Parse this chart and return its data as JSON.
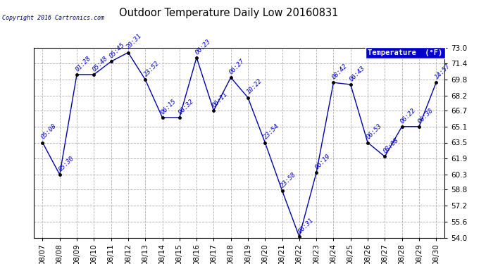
{
  "title": "Outdoor Temperature Daily Low 20160831",
  "copyright": "Copyright 2016 Cartronics.com",
  "legend_label": "Temperature  (°F)",
  "dates": [
    "08/07",
    "08/08",
    "08/09",
    "08/10",
    "08/11",
    "08/12",
    "08/13",
    "08/14",
    "08/15",
    "08/16",
    "08/17",
    "08/18",
    "08/19",
    "08/20",
    "08/21",
    "08/22",
    "08/23",
    "08/24",
    "08/25",
    "08/26",
    "08/27",
    "08/28",
    "08/29",
    "08/30"
  ],
  "temperatures": [
    63.5,
    60.3,
    70.3,
    70.3,
    71.6,
    72.5,
    69.8,
    66.0,
    66.0,
    72.0,
    66.7,
    70.0,
    68.0,
    63.5,
    58.7,
    54.1,
    60.5,
    69.5,
    69.3,
    63.5,
    62.1,
    65.1,
    65.1,
    69.5
  ],
  "time_labels": [
    "05:08",
    "05:30",
    "01:28",
    "05:48",
    "05:45",
    "20:31",
    "23:52",
    "06:15",
    "06:32",
    "06:23",
    "06:11",
    "06:27",
    "10:22",
    "23:54",
    "23:58",
    "06:31",
    "06:19",
    "08:42",
    "06:43",
    "06:53",
    "08:08",
    "06:22",
    "06:38",
    "14:57"
  ],
  "ylim": [
    54.0,
    73.0
  ],
  "yticks": [
    54.0,
    55.6,
    57.2,
    58.8,
    60.3,
    61.9,
    63.5,
    65.1,
    66.7,
    68.2,
    69.8,
    71.4,
    73.0
  ],
  "line_color": "#0000aa",
  "marker_color": "#000000",
  "bg_color": "#ffffff",
  "grid_color": "#b0b0b0",
  "label_color": "#0000cc",
  "title_color": "#000000",
  "legend_bg": "#0000cc",
  "legend_fg": "#ffffff"
}
